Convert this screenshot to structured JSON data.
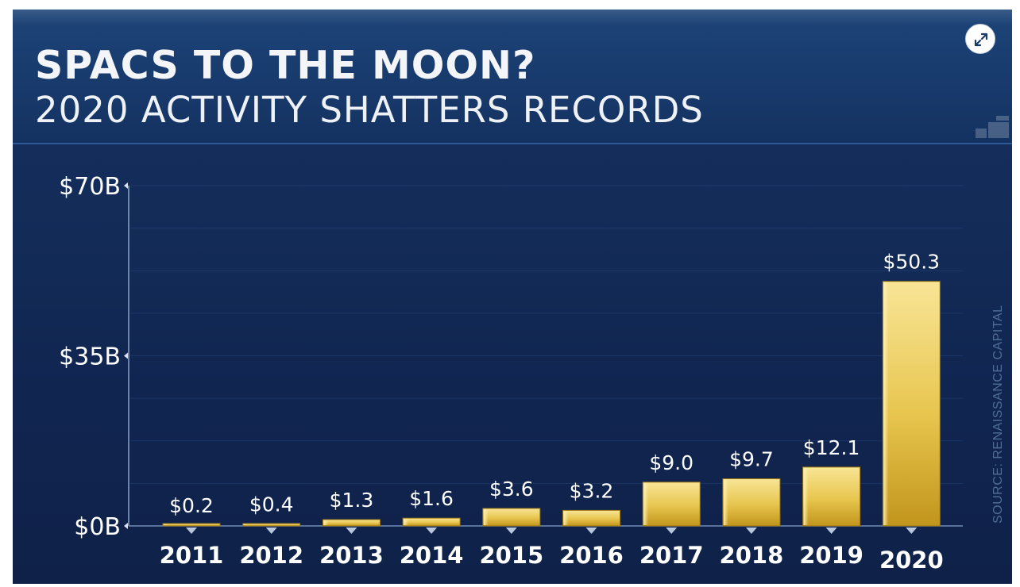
{
  "header": {
    "title": "SPACS TO THE MOON?",
    "subtitle": "2020 ACTIVITY SHATTERS RECORDS"
  },
  "expand_icon": "expand-icon",
  "source": "SOURCE: RENAISSANCE CAPITAL",
  "colors": {
    "background": "#132b57",
    "header": "#1a3f73",
    "bar_top": "#f6e08a",
    "bar_bottom": "#c99b1e",
    "text": "#ffffff",
    "source": "#4f6d96"
  },
  "chart_data": {
    "type": "bar",
    "title": "SPACS TO THE MOON?",
    "subtitle": "2020 ACTIVITY SHATTERS RECORDS",
    "xlabel": "",
    "ylabel": "",
    "categories": [
      "2011",
      "2012",
      "2013",
      "2014",
      "2015",
      "2016",
      "2017",
      "2018",
      "2019",
      "2020"
    ],
    "values": [
      0.2,
      0.4,
      1.3,
      1.6,
      3.6,
      3.2,
      9.0,
      9.7,
      12.1,
      50.3
    ],
    "value_labels": [
      "$0.2",
      "$0.4",
      "$1.3",
      "$1.6",
      "$3.6",
      "$3.2",
      "$9.0",
      "$9.7",
      "$12.1",
      "$50.3"
    ],
    "yticks": [
      0,
      35,
      70
    ],
    "ytick_labels": [
      "$0B",
      "$35B",
      "$70B"
    ],
    "ylim": [
      0,
      70
    ],
    "units": "billions USD",
    "grid": true
  }
}
